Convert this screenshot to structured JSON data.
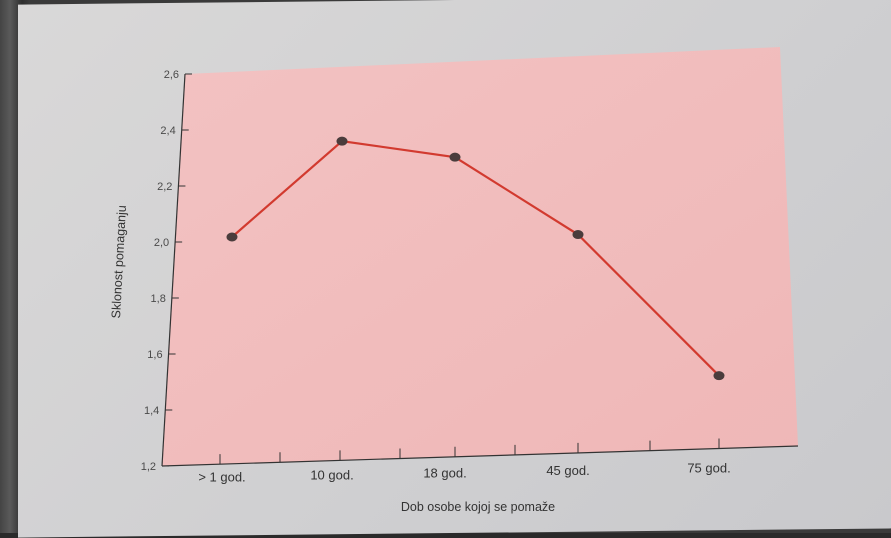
{
  "chart_data": {
    "type": "line",
    "categories": [
      "> 1 god.",
      "10 god.",
      "18 god.",
      "45 god.",
      "75 god."
    ],
    "values": [
      2.01,
      2.34,
      2.27,
      1.98,
      1.46
    ],
    "xlabel": "Dob osobe kojoj se pomaže",
    "ylabel": "Sklonost pomaganju",
    "ylim": [
      1.2,
      2.6
    ],
    "yticks": [
      "1,2",
      "1,4",
      "1,6",
      "1,8",
      "2,0",
      "2,2",
      "2,4",
      "2,6"
    ],
    "grid": false,
    "colors": {
      "plot_bg": "#f2bcbc",
      "line": "#d23a2f",
      "marker": "#4a3c3c"
    }
  }
}
